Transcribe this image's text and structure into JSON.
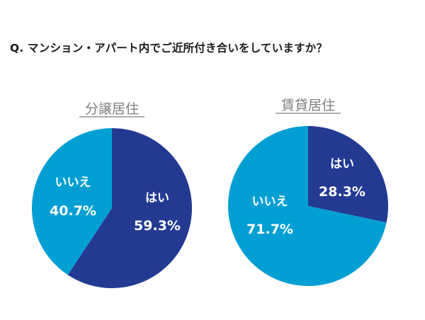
{
  "question": "Q. マンション・アパート内でご近所付き合いをしていますか？",
  "colors": {
    "yes": "#233a93",
    "no": "#009fd3",
    "label_text": "#ffffff",
    "title_text": "#7f7f7f"
  },
  "chart_data": [
    {
      "type": "pie",
      "title": "分譲居住",
      "slices": [
        {
          "label": "はい",
          "value": 59.3,
          "display": "59.3%"
        },
        {
          "label": "いいえ",
          "value": 40.7,
          "display": "40.7%"
        }
      ]
    },
    {
      "type": "pie",
      "title": "賃貸居住",
      "slices": [
        {
          "label": "はい",
          "value": 28.3,
          "display": "28.3%"
        },
        {
          "label": "いいえ",
          "value": 71.7,
          "display": "71.7%"
        }
      ]
    }
  ]
}
